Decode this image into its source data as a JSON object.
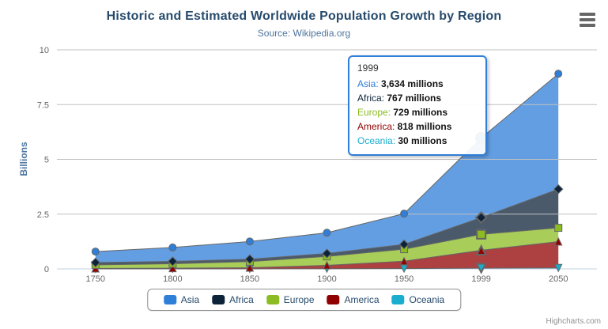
{
  "chart_data": {
    "type": "area",
    "stacking": "normal",
    "title": "Historic and Estimated Worldwide Population Growth by Region",
    "subtitle": "Source: Wikipedia.org",
    "categories": [
      "1750",
      "1800",
      "1850",
      "1900",
      "1950",
      "1999",
      "2050"
    ],
    "xlabel": "",
    "ylabel": "Billions",
    "ylim": [
      0,
      10
    ],
    "yticks": [
      0,
      2.5,
      5,
      7.5,
      10
    ],
    "values_unit": "millions",
    "grid": true,
    "legend_position": "bottom-center",
    "line_color": "#666666",
    "fill_opacity": 0.75,
    "stack_order_bottom_to_top": [
      "Oceania",
      "America",
      "Europe",
      "Africa",
      "Asia"
    ],
    "hovered_category": "1999",
    "series": [
      {
        "name": "Asia",
        "color": "#2f7ed8",
        "marker": "circle",
        "values": [
          502,
          635,
          809,
          947,
          1402,
          3634,
          5268
        ]
      },
      {
        "name": "Africa",
        "color": "#0d233a",
        "marker": "diamond",
        "values": [
          106,
          107,
          111,
          133,
          221,
          767,
          1766
        ]
      },
      {
        "name": "Europe",
        "color": "#8bbc21",
        "marker": "square",
        "values": [
          163,
          203,
          276,
          408,
          547,
          729,
          628
        ]
      },
      {
        "name": "America",
        "color": "#910000",
        "marker": "triangle",
        "values": [
          18,
          31,
          54,
          156,
          339,
          818,
          1201
        ]
      },
      {
        "name": "Oceania",
        "color": "#1aadce",
        "marker": "triangle-down",
        "values": [
          2,
          2,
          2,
          6,
          13,
          30,
          46
        ]
      }
    ]
  },
  "tooltip": {
    "header": "1999",
    "rows": [
      {
        "name": "Asia",
        "value": "3,634 millions"
      },
      {
        "name": "Africa",
        "value": "767 millions"
      },
      {
        "name": "Europe",
        "value": "729 millions"
      },
      {
        "name": "America",
        "value": "818 millions"
      },
      {
        "name": "Oceania",
        "value": "30 millions"
      }
    ]
  },
  "legend": {
    "items": [
      "Asia",
      "Africa",
      "Europe",
      "America",
      "Oceania"
    ]
  },
  "credits": "Highcharts.com",
  "colors": {
    "title": "#274b6d",
    "subtitle": "#4d759e",
    "axis_title": "#4d759e",
    "axis_labels": "#666666",
    "grid": "#C0C0C0",
    "axis_line": "#C0D0E0",
    "tooltip_border": "#2f7ed8",
    "legend_border": "#909090",
    "legend_text": "#274b6d",
    "export_icon": "#666666"
  }
}
